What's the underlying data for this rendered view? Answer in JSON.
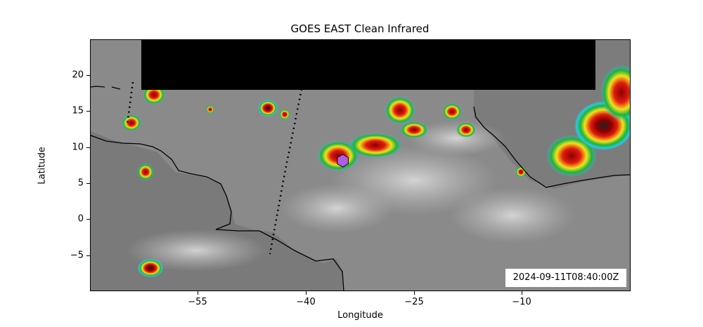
{
  "map": {
    "title": "GOES EAST Clean Infrared",
    "xlabel": "Longitude",
    "ylabel": "Latitude",
    "timestamp": "2024-09-11T08:40:00Z",
    "x_ticks": [
      "−55",
      "−40",
      "−25",
      "−10"
    ],
    "y_ticks": [
      "20",
      "15",
      "10",
      "5",
      "0",
      "−5"
    ],
    "xlim": [
      -60,
      -5
    ],
    "ylim": [
      -10,
      25
    ],
    "marker": {
      "shape": "hexagon",
      "color": "#b15ce6",
      "lon": -38.9,
      "lat": 8.3
    },
    "colors": {
      "land_sea_gray": "#8a8a8a",
      "coast": "#000000",
      "masked_region": "#000000",
      "cold_red": "#c41a12",
      "cold_yellow": "#f1e21c",
      "cold_green": "#19b43a",
      "cold_cyan": "#28c9e6"
    }
  }
}
